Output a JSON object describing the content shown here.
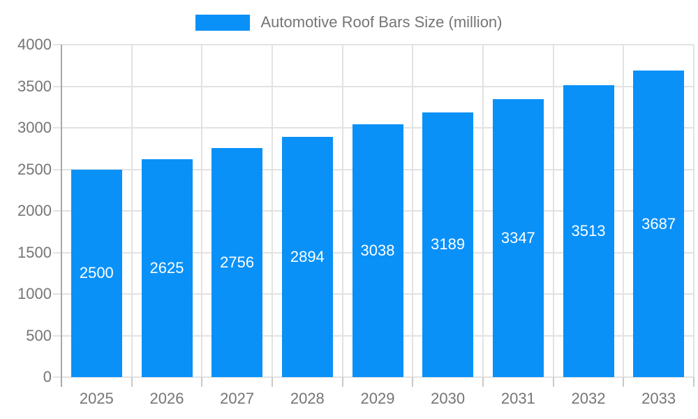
{
  "chart_data": {
    "type": "bar",
    "title": "Automotive Roof Bars Size (million)",
    "categories": [
      "2025",
      "2026",
      "2027",
      "2028",
      "2029",
      "2030",
      "2031",
      "2032",
      "2033"
    ],
    "values": [
      2500,
      2625,
      2756,
      2894,
      3038,
      3189,
      3347,
      3513,
      3687
    ],
    "series": [
      {
        "name": "Automotive Roof Bars Size (million)",
        "values": [
          2500,
          2625,
          2756,
          2894,
          3038,
          3189,
          3347,
          3513,
          3687
        ]
      }
    ],
    "y_ticks": [
      0,
      500,
      1000,
      1500,
      2000,
      2500,
      3000,
      3500,
      4000
    ],
    "ylim": [
      0,
      4000
    ],
    "xlabel": "",
    "ylabel": "",
    "legend_position": "top-center",
    "grid": true,
    "bar_labels_inside": true,
    "colors": {
      "bar": "#0991F8",
      "bar_label": "#FFFFFF",
      "axis_text": "#757575",
      "gridline": "#E2E2E2",
      "axis_line": "#A8A8A8",
      "x_tick": "#C9C9C9",
      "background": "#FFFFFF"
    }
  }
}
